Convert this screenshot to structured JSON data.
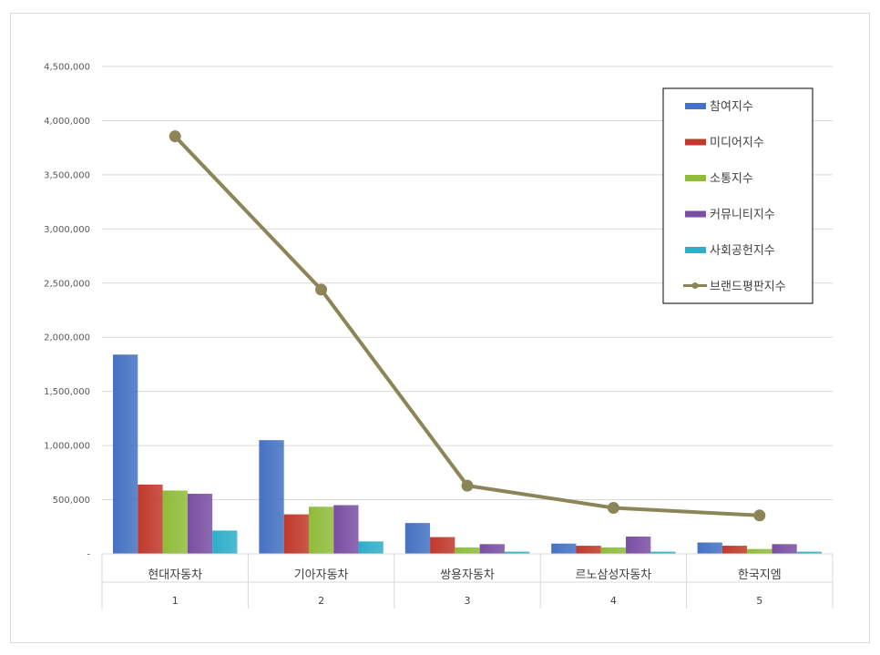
{
  "chart_data": {
    "type": "bar",
    "categories": [
      "현대자동차",
      "기아자동차",
      "쌍용자동차",
      "르노삼성자동차",
      "한국지엠"
    ],
    "ranks": [
      "1",
      "2",
      "3",
      "4",
      "5"
    ],
    "y_ticks": [
      "-",
      "500,000",
      "1,000,000",
      "1,500,000",
      "2,000,000",
      "2,500,000",
      "3,000,000",
      "3,500,000",
      "4,000,000",
      "4,500,000"
    ],
    "ylim": [
      0,
      4500000
    ],
    "grid": true,
    "legend_position": "top-right",
    "series": [
      {
        "name": "참여지수",
        "type": "bar",
        "color": "#4472c4",
        "values": [
          1840000,
          1050000,
          285000,
          95000,
          105000
        ]
      },
      {
        "name": "미디어지수",
        "type": "bar",
        "color": "#c0392b",
        "values": [
          640000,
          365000,
          155000,
          75000,
          75000
        ]
      },
      {
        "name": "소통지수",
        "type": "bar",
        "color": "#8fbc3a",
        "values": [
          585000,
          435000,
          60000,
          60000,
          45000
        ]
      },
      {
        "name": "커뮤니티지수",
        "type": "bar",
        "color": "#7a4fa3",
        "values": [
          555000,
          450000,
          90000,
          160000,
          90000
        ]
      },
      {
        "name": "사회공헌지수",
        "type": "bar",
        "color": "#2eaec9",
        "values": [
          215000,
          115000,
          20000,
          20000,
          20000
        ]
      },
      {
        "name": "브랜드평판지수",
        "type": "line",
        "color": "#8b8558",
        "values": [
          3855000,
          2440000,
          630000,
          425000,
          355000
        ]
      }
    ]
  }
}
